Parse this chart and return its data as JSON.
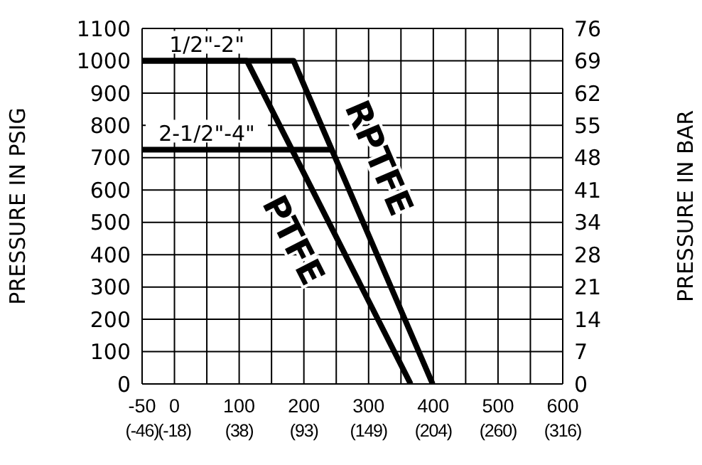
{
  "chart_data": {
    "type": "line",
    "ylabel": "PRESSURE IN PSIG",
    "y2label": "PRESSURE IN BAR",
    "xlim": [
      -50,
      600
    ],
    "xticks": [
      -50,
      0,
      {
        "value": 50,
        "label": null
      },
      100,
      {
        "value": 150,
        "label": null
      },
      200,
      {
        "value": 250,
        "label": null
      },
      300,
      {
        "value": 350,
        "label": null
      },
      400,
      {
        "value": 450,
        "label": null
      },
      500,
      {
        "value": 550,
        "label": null
      },
      600
    ],
    "x2lim": [
      -45.56,
      315.56
    ],
    "x2ticks": [
      {
        "value": -45.56,
        "label": "(-46)"
      },
      {
        "value": -17.78,
        "label": "(-18)"
      },
      {
        "value": 37.78,
        "label": "(38)"
      },
      {
        "value": 93.33,
        "label": "(93)"
      },
      {
        "value": 148.89,
        "label": "(149)"
      },
      {
        "value": 204.44,
        "label": "(204)"
      },
      {
        "value": 260,
        "label": "(260)"
      },
      {
        "value": 315.56,
        "label": "(316)"
      }
    ],
    "ylim": [
      0,
      1100
    ],
    "yticks": [
      0,
      100,
      200,
      300,
      400,
      500,
      600,
      700,
      800,
      900,
      1000,
      1100
    ],
    "y2lim": [
      0,
      75.84
    ],
    "y2ticks": [
      {
        "value": 0,
        "label": "0"
      },
      {
        "value": 6.89,
        "label": "7"
      },
      {
        "value": 13.79,
        "label": "14"
      },
      {
        "value": 20.68,
        "label": "21"
      },
      {
        "value": 27.58,
        "label": "28"
      },
      {
        "value": 34.47,
        "label": "34"
      },
      {
        "value": 41.37,
        "label": "41"
      },
      {
        "value": 48.26,
        "label": "48"
      },
      {
        "value": 55.16,
        "label": "55"
      },
      {
        "value": 62.05,
        "label": "62"
      },
      {
        "value": 68.95,
        "label": "69"
      },
      {
        "value": 75.84,
        "label": "76"
      }
    ],
    "grid": true,
    "marker": "none",
    "line_style": "solid",
    "series": [
      {
        "name": "PTFE",
        "color": "#000000",
        "x": [
          -50,
          112,
          365
        ],
        "values": [
          1000,
          1000,
          0
        ]
      },
      {
        "name": "RPTFE",
        "color": "#000000",
        "x": [
          -50,
          184,
          399
        ],
        "values": [
          1000,
          1000,
          0
        ]
      },
      {
        "color": "#000000",
        "x": [
          -50,
          242
        ],
        "values": [
          725,
          725
        ]
      }
    ],
    "annotations": [
      {
        "text": "1/2\"-2\"",
        "x": 50,
        "y": 1000
      },
      {
        "text": "2-1/2\"-4\"",
        "x": 50,
        "y": 725
      }
    ]
  }
}
